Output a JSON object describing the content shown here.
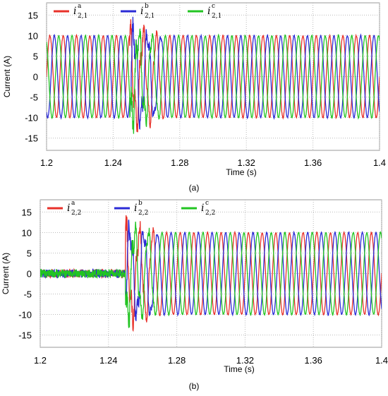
{
  "chart_data": [
    {
      "type": "line",
      "caption": "(a)",
      "xlabel": "Time (s)",
      "ylabel": "Current (A)",
      "xlim": [
        1.2,
        1.4
      ],
      "ylim": [
        -18,
        18
      ],
      "xticks": [
        "1.2",
        "1.24",
        "1.28",
        "1.32",
        "1.36",
        "1.4"
      ],
      "yticks": [
        "15",
        "10",
        "5",
        "0",
        "-5",
        "-10",
        "-15"
      ],
      "grid": true,
      "legend_position": "top-left",
      "waveform": {
        "frequency_hz": 125,
        "amplitude_before": 10,
        "amplitude_after": 10,
        "event_start": 1.25,
        "event_end": 1.272,
        "peak_transient": 15,
        "noise_amplitude": 0
      },
      "series": [
        {
          "name": "i",
          "sup": "a",
          "sub": "2,1",
          "color": "#e8312a",
          "phase_deg": 0,
          "values_summary": {
            "amplitude": 10
          }
        },
        {
          "name": "i",
          "sup": "b",
          "sub": "2,1",
          "color": "#2b2bd6",
          "phase_deg": -120,
          "values_summary": {
            "amplitude": 10
          }
        },
        {
          "name": "i",
          "sup": "c",
          "sub": "2,1",
          "color": "#22c422",
          "phase_deg": 120,
          "values_summary": {
            "amplitude": 10
          }
        }
      ]
    },
    {
      "type": "line",
      "caption": "(b)",
      "xlabel": "Time (s)",
      "ylabel": "Current (A)",
      "xlim": [
        1.2,
        1.4
      ],
      "ylim": [
        -18,
        18
      ],
      "xticks": [
        "1.2",
        "1.24",
        "1.28",
        "1.32",
        "1.36",
        "1.4"
      ],
      "yticks": [
        "15",
        "10",
        "5",
        "0",
        "-5",
        "-10",
        "-15"
      ],
      "grid": true,
      "legend_position": "top-left",
      "waveform": {
        "frequency_hz": 125,
        "amplitude_before": 0,
        "amplitude_after": 10,
        "event_start": 1.25,
        "event_end": 1.272,
        "peak_transient": 14,
        "noise_amplitude": 1
      },
      "series": [
        {
          "name": "i",
          "sup": "a",
          "sub": "2,2",
          "color": "#e8312a",
          "phase_deg": 0,
          "values_summary": {
            "amplitude": 10
          }
        },
        {
          "name": "i",
          "sup": "b",
          "sub": "2,2",
          "color": "#2b2bd6",
          "phase_deg": -120,
          "values_summary": {
            "amplitude": 10
          }
        },
        {
          "name": "i",
          "sup": "c",
          "sub": "2,2",
          "color": "#22c422",
          "phase_deg": 120,
          "values_summary": {
            "amplitude": 10
          }
        }
      ]
    }
  ]
}
